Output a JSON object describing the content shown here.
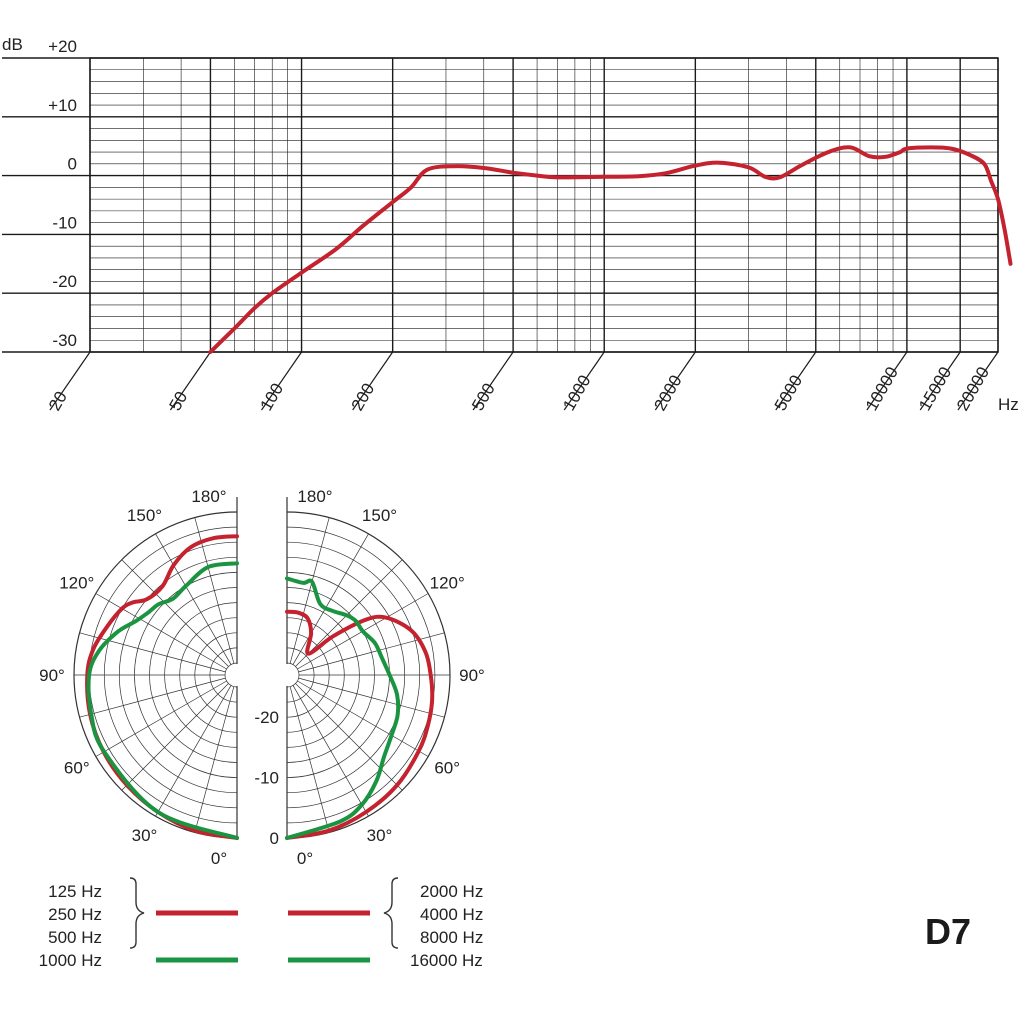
{
  "colors": {
    "red": "#c4222e",
    "green": "#1a9440",
    "grid": "#1a1a1a"
  },
  "model_label": "D7",
  "chart_data": [
    {
      "type": "line",
      "name": "frequency-response",
      "x_scale": "log",
      "y_unit_label": "dB",
      "x_unit_label": "Hz",
      "xlim": [
        20,
        20000
      ],
      "ylim": [
        -30,
        20
      ],
      "y_ticks": [
        {
          "value": 20,
          "label": "+20"
        },
        {
          "value": 10,
          "label": "+10"
        },
        {
          "value": 0,
          "label": "0"
        },
        {
          "value": -10,
          "label": "-10"
        },
        {
          "value": -20,
          "label": "-20"
        },
        {
          "value": -30,
          "label": "-30"
        }
      ],
      "x_ticks": [
        {
          "value": 20,
          "label": "20"
        },
        {
          "value": 50,
          "label": "50"
        },
        {
          "value": 100,
          "label": "100"
        },
        {
          "value": 200,
          "label": "200"
        },
        {
          "value": 500,
          "label": "500"
        },
        {
          "value": 1000,
          "label": "1000"
        },
        {
          "value": 2000,
          "label": "2000"
        },
        {
          "value": 5000,
          "label": "5000"
        },
        {
          "value": 10000,
          "label": "10000"
        },
        {
          "value": 15000,
          "label": "15000"
        },
        {
          "value": 20000,
          "label": "20000"
        }
      ],
      "grid": true,
      "series": [
        {
          "color": "red",
          "points": [
            [
              50,
              -30
            ],
            [
              60,
              -26
            ],
            [
              70,
              -22.5
            ],
            [
              80,
              -20
            ],
            [
              100,
              -16.5
            ],
            [
              130,
              -12.5
            ],
            [
              160,
              -8.5
            ],
            [
              200,
              -4.5
            ],
            [
              230,
              -2
            ],
            [
              260,
              1
            ],
            [
              320,
              1.6
            ],
            [
              400,
              1.3
            ],
            [
              500,
              0.5
            ],
            [
              600,
              0
            ],
            [
              700,
              -0.3
            ],
            [
              1000,
              -0.2
            ],
            [
              1300,
              -0.1
            ],
            [
              1600,
              0.4
            ],
            [
              2000,
              1.7
            ],
            [
              2400,
              2.2
            ],
            [
              3000,
              1.4
            ],
            [
              3400,
              -0.2
            ],
            [
              3800,
              -0.3
            ],
            [
              4500,
              1.8
            ],
            [
              5500,
              4
            ],
            [
              6500,
              4.8
            ],
            [
              7500,
              3.3
            ],
            [
              8500,
              3.2
            ],
            [
              9500,
              4
            ],
            [
              10000,
              4.6
            ],
            [
              12000,
              4.8
            ],
            [
              14000,
              4.6
            ],
            [
              16000,
              3.6
            ],
            [
              18000,
              2
            ],
            [
              19000,
              -1
            ],
            [
              20000,
              -4
            ],
            [
              21000,
              -9
            ],
            [
              22000,
              -15
            ]
          ]
        }
      ]
    },
    {
      "type": "polar",
      "name": "polar-pattern",
      "r_ticks": [
        {
          "value": 0,
          "label": "0"
        },
        {
          "value": -10,
          "label": "-10"
        },
        {
          "value": -20,
          "label": "-20"
        }
      ],
      "r_range": [
        -25,
        0
      ],
      "angle_labels": [
        "0°",
        "30°",
        "60°",
        "90°",
        "120°",
        "150°",
        "180°"
      ],
      "left_series": [
        {
          "color": "red",
          "legend": [
            "125 Hz",
            "250 Hz",
            "500 Hz"
          ],
          "points": [
            [
              0,
              0
            ],
            [
              15,
              -0.3
            ],
            [
              30,
              -0.8
            ],
            [
              45,
              -1.2
            ],
            [
              60,
              -1.5
            ],
            [
              75,
              -1.8
            ],
            [
              90,
              -2.2
            ],
            [
              100,
              -2.8
            ],
            [
              110,
              -4
            ],
            [
              120,
              -5
            ],
            [
              125,
              -6
            ],
            [
              130,
              -7.5
            ],
            [
              140,
              -7.8
            ],
            [
              150,
              -6
            ],
            [
              160,
              -4.5
            ],
            [
              170,
              -4
            ],
            [
              180,
              -4
            ]
          ]
        },
        {
          "color": "green",
          "legend": [
            "1000 Hz"
          ],
          "points": [
            [
              0,
              0
            ],
            [
              30,
              -0.8
            ],
            [
              60,
              -1.6
            ],
            [
              75,
              -2
            ],
            [
              90,
              -2.5
            ],
            [
              100,
              -3.8
            ],
            [
              110,
              -6
            ],
            [
              118,
              -8
            ],
            [
              125,
              -9
            ],
            [
              132,
              -9.5
            ],
            [
              140,
              -10.5
            ],
            [
              150,
              -10
            ],
            [
              165,
              -8.5
            ],
            [
              180,
              -8.5
            ]
          ]
        }
      ],
      "right_series": [
        {
          "color": "red",
          "legend": [
            "2000 Hz",
            "4000 Hz",
            "8000 Hz"
          ],
          "points": [
            [
              0,
              0
            ],
            [
              15,
              -0.3
            ],
            [
              30,
              -0.8
            ],
            [
              45,
              -1.2
            ],
            [
              60,
              -1.8
            ],
            [
              70,
              -2.2
            ],
            [
              80,
              -2.6
            ],
            [
              90,
              -3.2
            ],
            [
              100,
              -3.8
            ],
            [
              110,
              -5.2
            ],
            [
              120,
              -8
            ],
            [
              125,
              -11
            ],
            [
              130,
              -17
            ],
            [
              135,
              -22
            ],
            [
              150,
              -19
            ],
            [
              160,
              -17
            ],
            [
              170,
              -16.5
            ],
            [
              180,
              -16.5
            ]
          ]
        },
        {
          "color": "green",
          "legend": [
            "16000 Hz"
          ],
          "points": [
            [
              0,
              0
            ],
            [
              20,
              -1.2
            ],
            [
              30,
              -2.2
            ],
            [
              40,
              -4
            ],
            [
              50,
              -6
            ],
            [
              60,
              -7
            ],
            [
              70,
              -7.5
            ],
            [
              80,
              -8.5
            ],
            [
              90,
              -10
            ],
            [
              100,
              -11
            ],
            [
              110,
              -11.5
            ],
            [
              120,
              -12.5
            ],
            [
              128,
              -12.5
            ],
            [
              135,
              -13
            ],
            [
              145,
              -14
            ],
            [
              155,
              -14
            ],
            [
              165,
              -11
            ],
            [
              170,
              -11.5
            ],
            [
              180,
              -11
            ]
          ]
        }
      ]
    }
  ]
}
